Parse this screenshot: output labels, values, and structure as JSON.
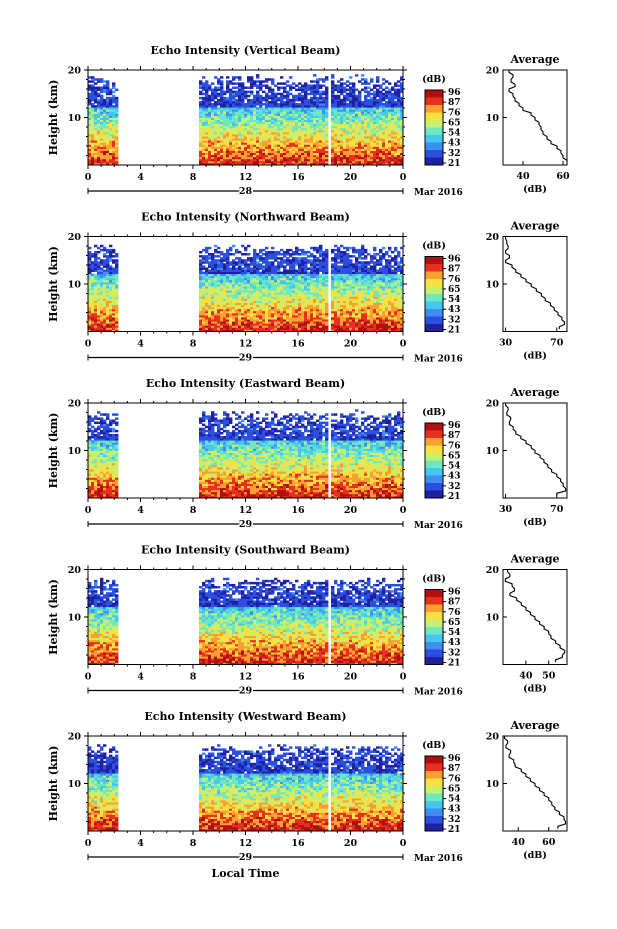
{
  "figure": {
    "date_label": "Mar 2016",
    "time_axis_label": "Local Time",
    "unit_label": "(dB)",
    "average_title": "Average",
    "colorbar_ticks": [
      "96",
      "87",
      "76",
      "65",
      "54",
      "43",
      "32",
      "21"
    ],
    "colors": {
      "data_gap": "#ffffff",
      "axis": "#000000",
      "colormap": [
        "#2020a0",
        "#2b50e0",
        "#3f8ef0",
        "#44c8f0",
        "#6ee8c0",
        "#c8f070",
        "#f8e040",
        "#f8a030",
        "#e83020",
        "#b01010"
      ]
    }
  },
  "chart_data": [
    {
      "type": "heatmap",
      "title": "Echo Intensity (Vertical Beam)",
      "ylabel": "Height (km)",
      "xlim": [
        0,
        24
      ],
      "ylim": [
        0,
        20
      ],
      "x_ticks": [
        "0",
        "4",
        "8",
        "12",
        "16",
        "20",
        "0"
      ],
      "y_ticks": [
        "20",
        "10"
      ],
      "day_labels": [
        "28"
      ],
      "data_intervals_hours": [
        [
          0,
          2.4
        ],
        [
          8.4,
          18.2
        ],
        [
          18.6,
          24
        ]
      ],
      "colorbar": {
        "label": "(dB)",
        "ticks": [
          96,
          87,
          76,
          65,
          54,
          43,
          32,
          21
        ]
      },
      "average_profile": {
        "xlabel": "(dB)",
        "x_ticks": [
          "40",
          "60"
        ],
        "xlim": [
          30,
          62
        ],
        "height_km": [
          20,
          19,
          18,
          17,
          16,
          15,
          14,
          13,
          12,
          11,
          10,
          9,
          8,
          7,
          6,
          5,
          4,
          3,
          2,
          1
        ],
        "db": [
          33,
          35,
          34,
          36,
          33,
          35,
          36,
          38,
          40,
          44,
          46,
          48,
          49,
          50,
          52,
          54,
          57,
          59,
          60,
          62
        ]
      }
    },
    {
      "type": "heatmap",
      "title": "Echo Intensity (Northward Beam)",
      "ylabel": "Height (km)",
      "xlim": [
        0,
        24
      ],
      "ylim": [
        0,
        20
      ],
      "x_ticks": [
        "0",
        "4",
        "8",
        "12",
        "16",
        "20",
        "0"
      ],
      "y_ticks": [
        "20",
        "10"
      ],
      "day_labels": [
        "29"
      ],
      "data_intervals_hours": [
        [
          0,
          2.4
        ],
        [
          8.4,
          18.2
        ],
        [
          18.6,
          24
        ]
      ],
      "colorbar": {
        "label": "(dB)",
        "ticks": [
          96,
          87,
          76,
          65,
          54,
          43,
          32,
          21
        ]
      },
      "average_profile": {
        "xlabel": "(dB)",
        "x_ticks": [
          "30",
          "70"
        ],
        "xlim": [
          28,
          78
        ],
        "height_km": [
          20,
          19,
          18,
          17,
          16,
          15,
          14,
          13,
          12,
          11,
          10,
          9,
          8,
          7,
          6,
          5,
          4,
          3,
          2,
          1
        ],
        "db": [
          30,
          31,
          32,
          30,
          33,
          30,
          35,
          38,
          42,
          46,
          50,
          54,
          58,
          61,
          65,
          68,
          71,
          74,
          76,
          72
        ]
      }
    },
    {
      "type": "heatmap",
      "title": "Echo Intensity (Eastward Beam)",
      "ylabel": "Height (km)",
      "xlim": [
        0,
        24
      ],
      "ylim": [
        0,
        20
      ],
      "x_ticks": [
        "0",
        "4",
        "8",
        "12",
        "16",
        "20",
        "0"
      ],
      "y_ticks": [
        "20",
        "10"
      ],
      "day_labels": [
        "29"
      ],
      "data_intervals_hours": [
        [
          0,
          2.4
        ],
        [
          8.4,
          18.2
        ],
        [
          18.6,
          24
        ]
      ],
      "colorbar": {
        "label": "(dB)",
        "ticks": [
          96,
          87,
          76,
          65,
          54,
          43,
          32,
          21
        ]
      },
      "average_profile": {
        "xlabel": "(dB)",
        "x_ticks": [
          "30",
          "70"
        ],
        "xlim": [
          28,
          78
        ],
        "height_km": [
          20,
          19,
          18,
          17,
          16,
          15,
          14,
          13,
          12,
          11,
          10,
          9,
          8,
          7,
          6,
          5,
          4,
          3,
          2,
          1
        ],
        "db": [
          30,
          32,
          31,
          34,
          33,
          36,
          38,
          42,
          46,
          50,
          53,
          57,
          60,
          63,
          66,
          70,
          73,
          75,
          77,
          70
        ]
      }
    },
    {
      "type": "heatmap",
      "title": "Echo Intensity (Southward Beam)",
      "ylabel": "Height (km)",
      "xlim": [
        0,
        24
      ],
      "ylim": [
        0,
        20
      ],
      "x_ticks": [
        "0",
        "4",
        "8",
        "12",
        "16",
        "20",
        "0"
      ],
      "y_ticks": [
        "20",
        "10"
      ],
      "day_labels": [
        "29"
      ],
      "data_intervals_hours": [
        [
          0,
          2.4
        ],
        [
          8.4,
          18.2
        ],
        [
          18.6,
          24
        ]
      ],
      "colorbar": {
        "label": "(dB)",
        "ticks": [
          96,
          87,
          76,
          65,
          54,
          43,
          32,
          21
        ]
      },
      "average_profile": {
        "xlabel": "(dB)",
        "x_ticks": [
          "40",
          "50"
        ],
        "xlim": [
          30,
          58
        ],
        "height_km": [
          20,
          19,
          18,
          17,
          16,
          15,
          14,
          13,
          12,
          11,
          10,
          9,
          8,
          7,
          6,
          5,
          4,
          3,
          2,
          1
        ],
        "db": [
          32,
          33,
          31,
          34,
          35,
          33,
          36,
          38,
          40,
          42,
          44,
          46,
          48,
          50,
          51,
          53,
          55,
          57,
          56,
          53
        ]
      }
    },
    {
      "type": "heatmap",
      "title": "Echo Intensity (Westward Beam)",
      "ylabel": "Height (km)",
      "xlim": [
        0,
        24
      ],
      "ylim": [
        0,
        20
      ],
      "x_ticks": [
        "0",
        "4",
        "8",
        "12",
        "16",
        "20",
        "0"
      ],
      "y_ticks": [
        "20",
        "10"
      ],
      "day_labels": [
        "29"
      ],
      "data_intervals_hours": [
        [
          0,
          2.4
        ],
        [
          8.4,
          18.2
        ],
        [
          18.6,
          24
        ]
      ],
      "colorbar": {
        "label": "(dB)",
        "ticks": [
          96,
          87,
          76,
          65,
          54,
          43,
          32,
          21
        ]
      },
      "average_profile": {
        "xlabel": "(dB)",
        "x_ticks": [
          "40",
          "60"
        ],
        "xlim": [
          30,
          72
        ],
        "height_km": [
          20,
          19,
          18,
          17,
          16,
          15,
          14,
          13,
          12,
          11,
          10,
          9,
          8,
          7,
          6,
          5,
          4,
          3,
          2,
          1
        ],
        "db": [
          31,
          33,
          32,
          35,
          34,
          37,
          38,
          42,
          45,
          48,
          51,
          54,
          57,
          60,
          62,
          64,
          67,
          70,
          71,
          66
        ]
      }
    }
  ]
}
